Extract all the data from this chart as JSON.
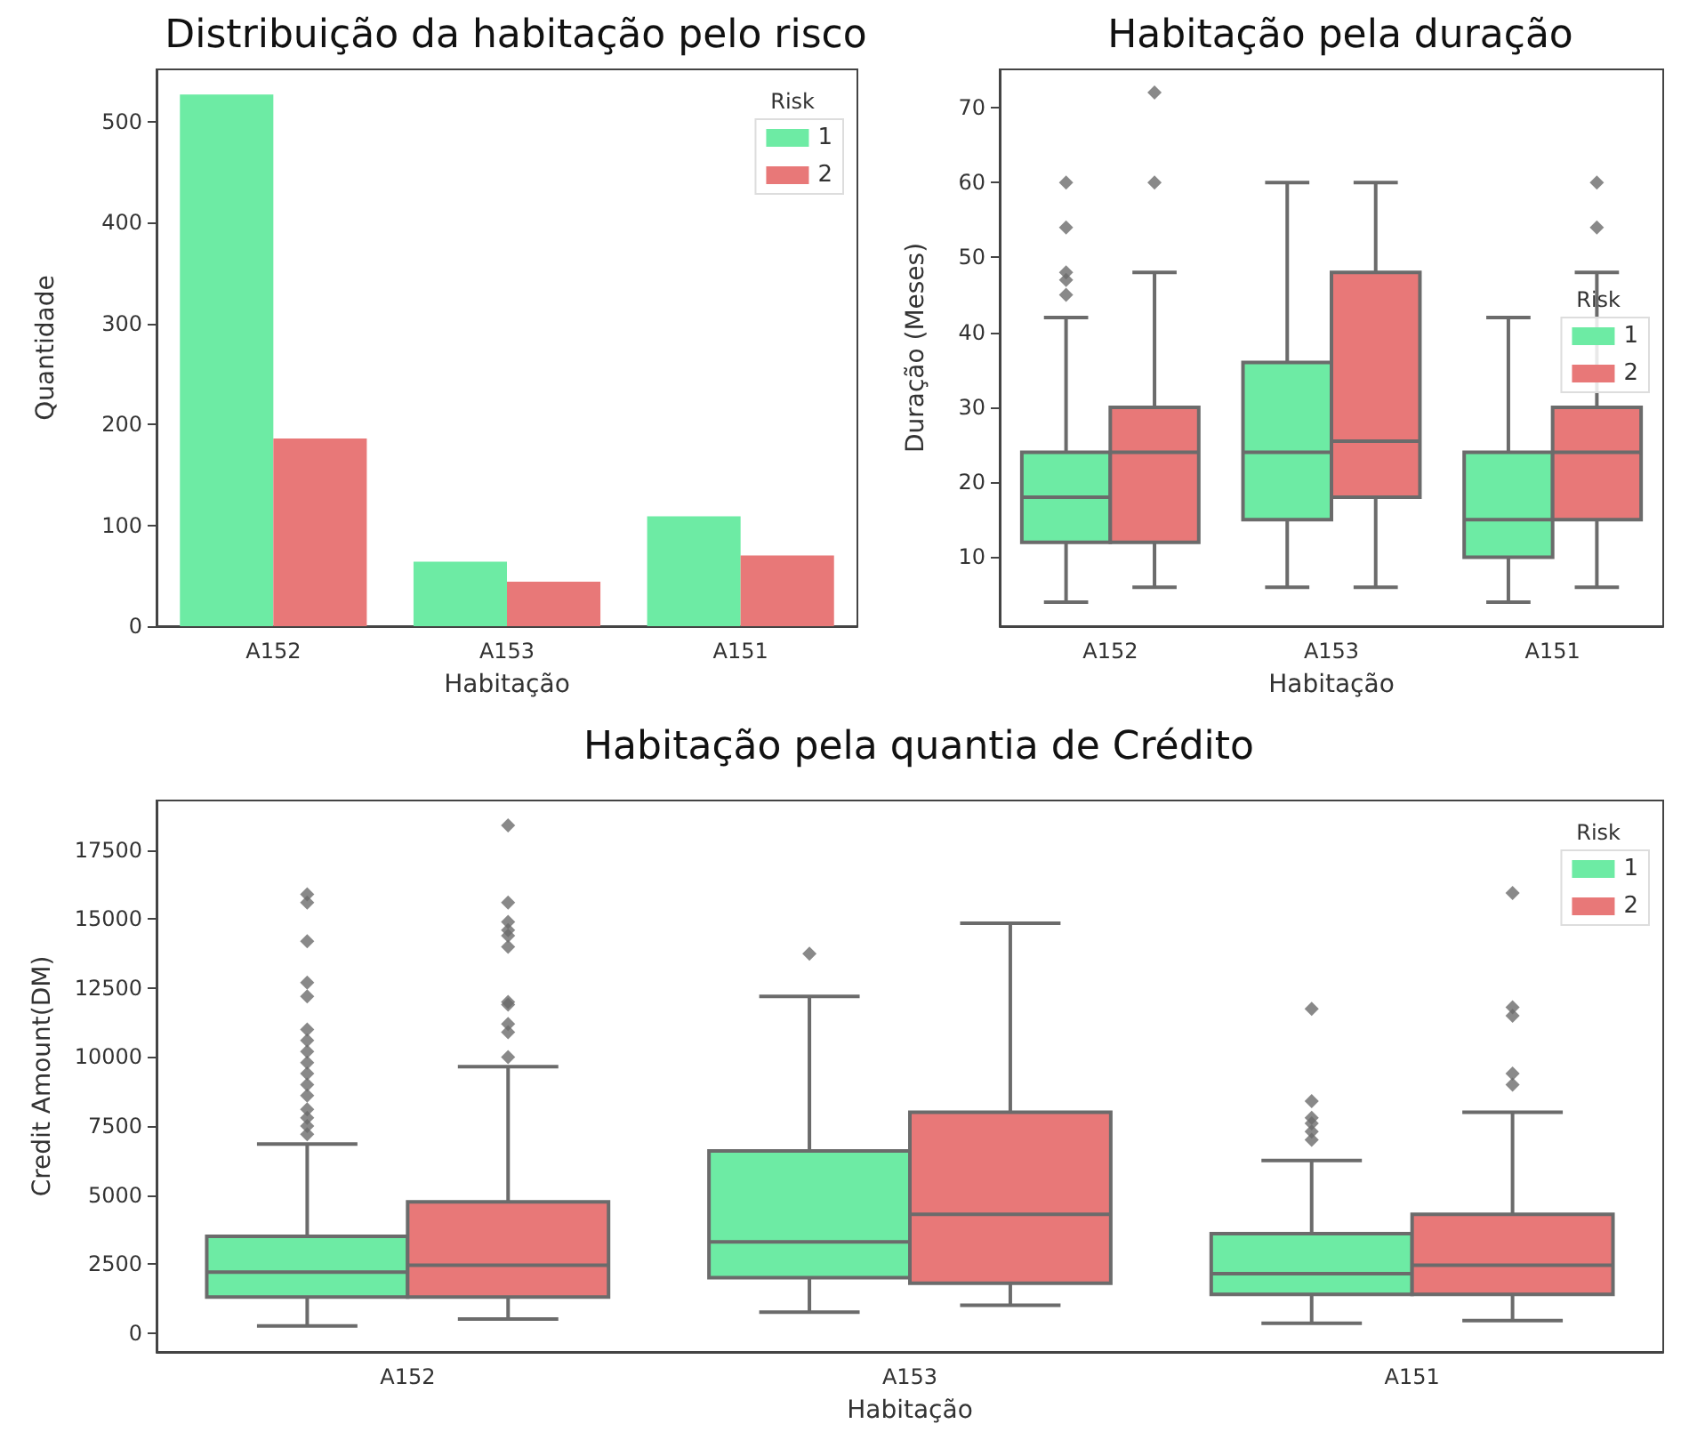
{
  "chart_data": [
    {
      "type": "bar",
      "title": "Distribuição da habitação pelo risco",
      "xlabel": "Habitação",
      "ylabel": "Quantidade",
      "legend_title": "Risk",
      "legend": "top right",
      "categories": [
        "A152",
        "A153",
        "A151"
      ],
      "ylim": [
        0,
        552
      ],
      "yticks": [
        0,
        100,
        200,
        300,
        400,
        500
      ],
      "series": [
        {
          "name": "1",
          "color": "#6deba4",
          "values": [
            527,
            64,
            109
          ]
        },
        {
          "name": "2",
          "color": "#e87878",
          "values": [
            186,
            44,
            70
          ]
        }
      ]
    },
    {
      "type": "box",
      "title": "Habitação pela duração",
      "xlabel": "Habitação",
      "ylabel": "Duração (Meses)",
      "legend_title": "Risk",
      "legend": "right",
      "categories": [
        "A152",
        "A153",
        "A151"
      ],
      "ylim": [
        0.8,
        75.1
      ],
      "yticks": [
        10,
        20,
        30,
        40,
        50,
        60,
        70
      ],
      "marker": "diamond",
      "series": [
        {
          "name": "1",
          "color": "#6deba4",
          "boxes": [
            {
              "low": 4,
              "q1": 12,
              "median": 18,
              "q3": 24,
              "high": 42,
              "outliers": [
                45,
                47,
                48,
                54,
                60
              ]
            },
            {
              "low": 6,
              "q1": 15,
              "median": 24,
              "q3": 36,
              "high": 60
            },
            {
              "low": 4,
              "q1": 10,
              "median": 15,
              "q3": 24,
              "high": 42
            }
          ]
        },
        {
          "name": "2",
          "color": "#e87878",
          "boxes": [
            {
              "low": 6,
              "q1": 12,
              "median": 24,
              "q3": 30,
              "high": 48,
              "outliers": [
                60,
                72
              ]
            },
            {
              "low": 6,
              "q1": 18,
              "median": 25.5,
              "q3": 48,
              "high": 60
            },
            {
              "low": 6,
              "q1": 15,
              "median": 24,
              "q3": 30,
              "high": 48,
              "outliers": [
                54,
                60
              ]
            }
          ]
        }
      ]
    },
    {
      "type": "box",
      "title": "Habitação pela quantia de Crédito",
      "xlabel": "Habitação",
      "ylabel": "Credit Amount(DM)",
      "legend_title": "Risk",
      "legend": "top right",
      "categories": [
        "A152",
        "A153",
        "A151"
      ],
      "ylim": [
        -690,
        19300
      ],
      "yticks": [
        0,
        2500,
        5000,
        7500,
        10000,
        12500,
        15000,
        17500
      ],
      "marker": "diamond",
      "series": [
        {
          "name": "1",
          "color": "#6deba4",
          "boxes": [
            {
              "low": 250,
              "q1": 1300,
              "median": 2200,
              "q3": 3500,
              "high": 6850,
              "outliers": [
                7200,
                7500,
                7800,
                8100,
                8600,
                9000,
                9400,
                9800,
                10200,
                10600,
                11000,
                12200,
                12700,
                14200,
                15600,
                15900
              ]
            },
            {
              "low": 750,
              "q1": 2000,
              "median": 3300,
              "q3": 6600,
              "high": 12200,
              "outliers": [
                13750
              ]
            },
            {
              "low": 350,
              "q1": 1400,
              "median": 2150,
              "q3": 3600,
              "high": 6250,
              "outliers": [
                7000,
                7300,
                7600,
                7800,
                8400,
                11750
              ]
            }
          ]
        },
        {
          "name": "2",
          "color": "#e87878",
          "boxes": [
            {
              "low": 500,
              "q1": 1300,
              "median": 2450,
              "q3": 4750,
              "high": 9650,
              "outliers": [
                10000,
                10900,
                11200,
                11900,
                12000,
                14000,
                14400,
                14600,
                14900,
                15600,
                18400
              ]
            },
            {
              "low": 1000,
              "q1": 1800,
              "median": 4300,
              "q3": 8000,
              "high": 14850
            },
            {
              "low": 450,
              "q1": 1400,
              "median": 2450,
              "q3": 4300,
              "high": 8000,
              "outliers": [
                9000,
                9400,
                11500,
                11800,
                15950
              ]
            }
          ]
        }
      ]
    }
  ]
}
